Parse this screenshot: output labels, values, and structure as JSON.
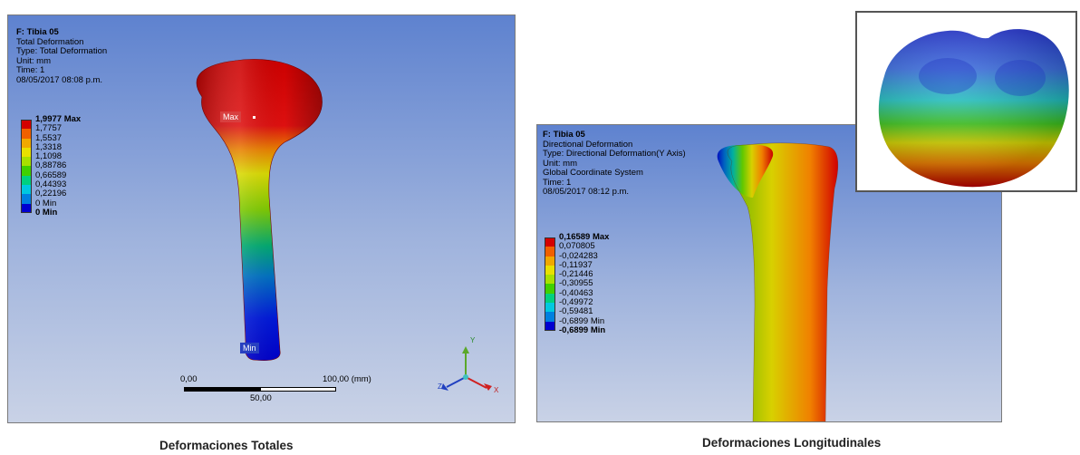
{
  "left_panel": {
    "info": {
      "title": "F: Tibia 05",
      "lines": [
        "Total Deformation",
        "Type: Total Deformation",
        "Unit: mm",
        "Time: 1",
        "08/05/2017 08:08 p.m."
      ]
    },
    "legend": {
      "labels": [
        "1,9977 Max",
        "1,7757",
        "1,5537",
        "1,3318",
        "1,1098",
        "0,88786",
        "0,66589",
        "0,44393",
        "0,22196",
        "0 Min"
      ],
      "colors": [
        "#d40000",
        "#f06000",
        "#f0a800",
        "#e8e000",
        "#a8e000",
        "#40d000",
        "#00d080",
        "#00c8e0",
        "#0080e0",
        "#0000d0"
      ]
    },
    "max_marker": "Max",
    "min_marker": "Min",
    "scale": {
      "start": "0,00",
      "end": "100,00 (mm)",
      "mid": "50,00"
    },
    "triad": {
      "x": "X",
      "y": "Y",
      "z": "Z"
    }
  },
  "right_panel": {
    "info": {
      "title": "F: Tibia 05",
      "lines": [
        "Directional Deformation",
        "Type: Directional Deformation(Y Axis)",
        "Unit: mm",
        "Global Coordinate System",
        "Time: 1",
        "08/05/2017 08:12 p.m."
      ]
    },
    "legend": {
      "labels": [
        "0,16589 Max",
        "0,070805",
        "-0,024283",
        "-0,11937",
        "-0,21446",
        "-0,30955",
        "-0,40463",
        "-0,49972",
        "-0,59481",
        "-0,6899 Min"
      ],
      "colors": [
        "#d40000",
        "#f06000",
        "#f0a800",
        "#e8e000",
        "#a8e000",
        "#40d000",
        "#00d080",
        "#00c8e0",
        "#0080e0",
        "#0000d0"
      ]
    },
    "inset_icon": "tibia-top-view"
  },
  "captions": {
    "left": "Deformaciones Totales",
    "right": "Deformaciones Longitudinales"
  }
}
